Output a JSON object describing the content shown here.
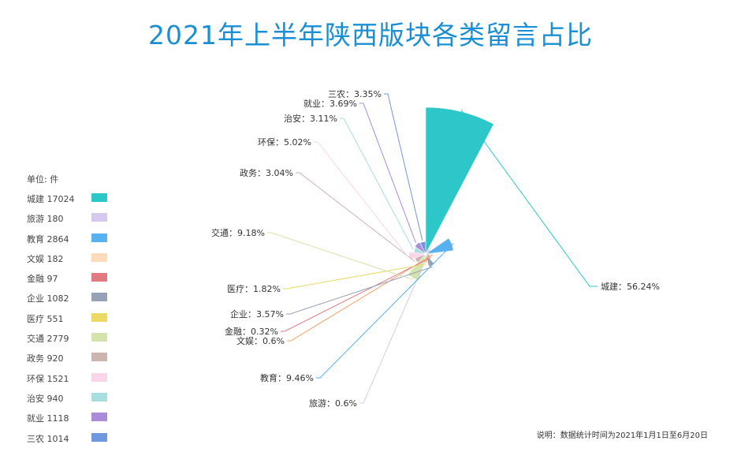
{
  "chart_data": {
    "type": "pie",
    "title": "2021年上半年陕西版块各类留言占比",
    "unit_label": "单位:  件",
    "note": "说明：数据统计时间为2021年1月1日至6月20日",
    "categories": [
      "城建",
      "旅游",
      "教育",
      "文娱",
      "金融",
      "企业",
      "医疗",
      "交通",
      "政务",
      "环保",
      "治安",
      "就业",
      "三农"
    ],
    "values": [
      17024,
      180,
      2864,
      182,
      97,
      1082,
      551,
      2779,
      920,
      1521,
      940,
      1118,
      1014
    ],
    "slice_labels": [
      "城建：56.24%",
      "旅游：0.6%",
      "教育：9.46%",
      "文娱：0.6%",
      "金融：0.32%",
      "企业：3.57%",
      "医疗：1.82%",
      "交通：9.18%",
      "政务：3.04%",
      "环保：5.02%",
      "治安：3.11%",
      "就业：3.69%",
      "三农：3.35%"
    ],
    "colors": [
      "#2ec7c9",
      "#d7c9ee",
      "#5ab1ef",
      "#ffdbbc",
      "#e07b81",
      "#97a1b8",
      "#ecd966",
      "#d4e3ae",
      "#ccb4b1",
      "#f9d5ea",
      "#a8dedf",
      "#a98bd9",
      "#7098de"
    ],
    "legend_placement": "left"
  }
}
